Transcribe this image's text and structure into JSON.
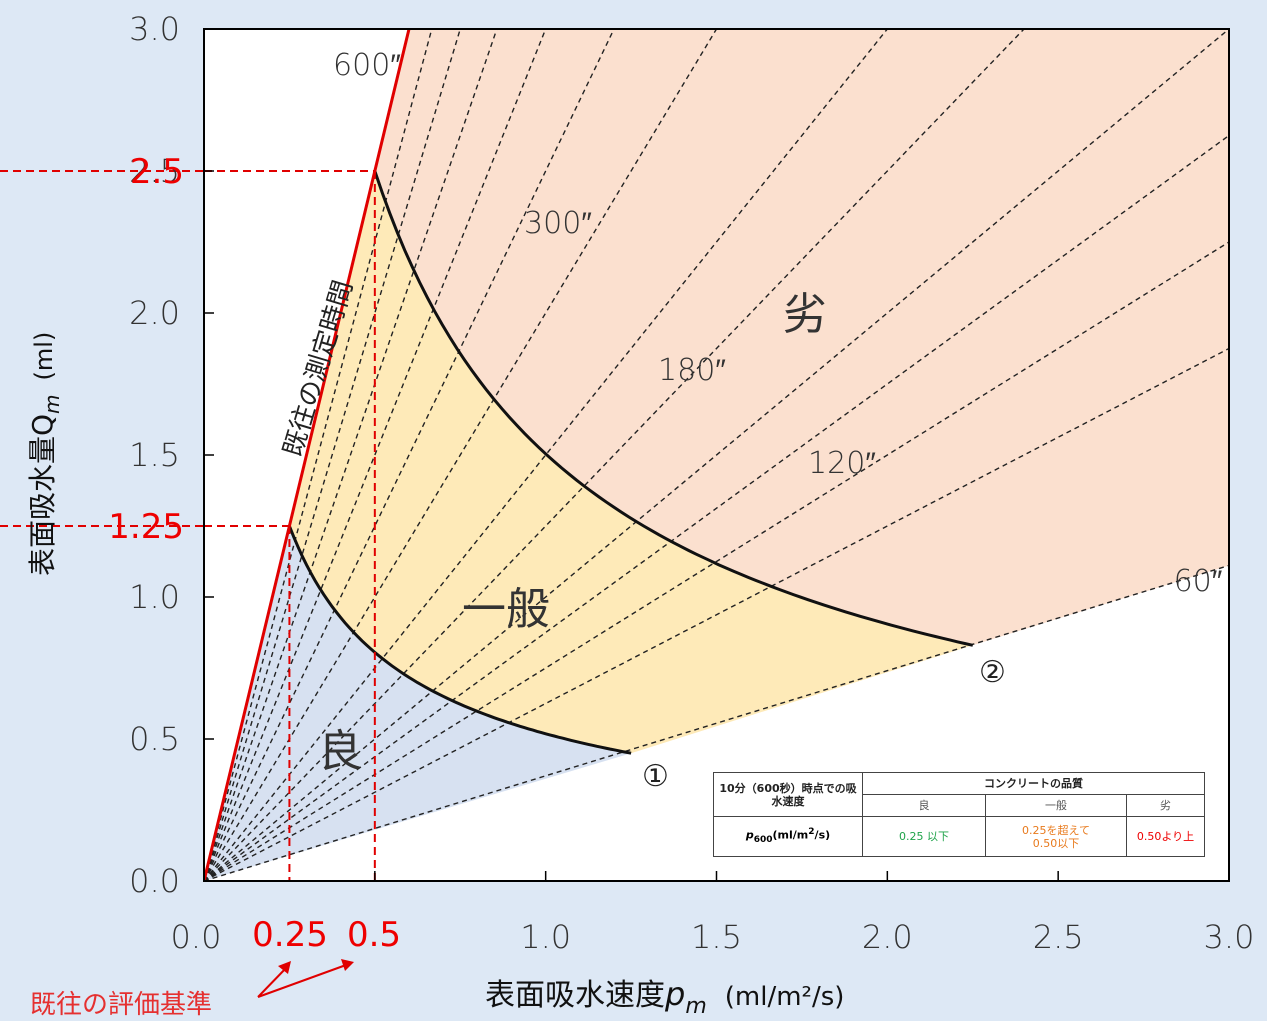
{
  "chart_data": {
    "type": "line",
    "xlabel": "表面吸水速度",
    "xlabel_symbol": "p",
    "xlabel_symbol_sub": "m",
    "xlabel_unit": "(ml/m²/s)",
    "ylabel": "表面吸水量Q",
    "ylabel_sub": "m",
    "ylabel_unit": "(ml)",
    "xlim": [
      0,
      3.0
    ],
    "ylim": [
      0,
      3.0
    ],
    "x_ticks": [
      "0.0",
      "1.0",
      "1.5",
      "2.0",
      "2.5",
      "3.0"
    ],
    "y_ticks": [
      "0.0",
      "0.5",
      "1.0",
      "1.5",
      "2.0",
      "2.5",
      "3.0"
    ],
    "highlight_x_ticks": [
      "0.25",
      "0.5"
    ],
    "highlight_y_ticks": [
      "1.25",
      "2.5"
    ],
    "time_lines_seconds": [
      60,
      75,
      90,
      105,
      120,
      150,
      180,
      240,
      300,
      360,
      420,
      480,
      540,
      600
    ],
    "time_line_labels": [
      "600″",
      "300″",
      "180″",
      "120″",
      "60″"
    ],
    "curve_labels": {
      "measurement_time": "既往の測定時間"
    },
    "zones": {
      "good": "良",
      "average": "一般",
      "poor": "劣"
    },
    "point_labels": [
      "①",
      "②"
    ],
    "boundary_points": {
      "p1": [
        1.25,
        0.45
      ],
      "p2": [
        2.25,
        0.83
      ]
    },
    "annotation": "既往の評価基準",
    "colors": {
      "good": "#d7e1f1",
      "average": "#feeab8",
      "poor": "#fbe0cf",
      "red": "#e00000"
    }
  },
  "table": {
    "row_header": "10分（600秒）時点での吸水速度",
    "quality_header": "コンクリートの品質",
    "grades": [
      "良",
      "一般",
      "劣"
    ],
    "param": "p",
    "param_sub": "600",
    "param_unit": "(ml/m",
    "param_unit_sup": "2",
    "param_unit_end": "/s)",
    "good_value": "0.25 以下",
    "avg_value_1": "0.25を超えて",
    "avg_value_2": "0.50以下",
    "poor_value": "0.50より上"
  }
}
